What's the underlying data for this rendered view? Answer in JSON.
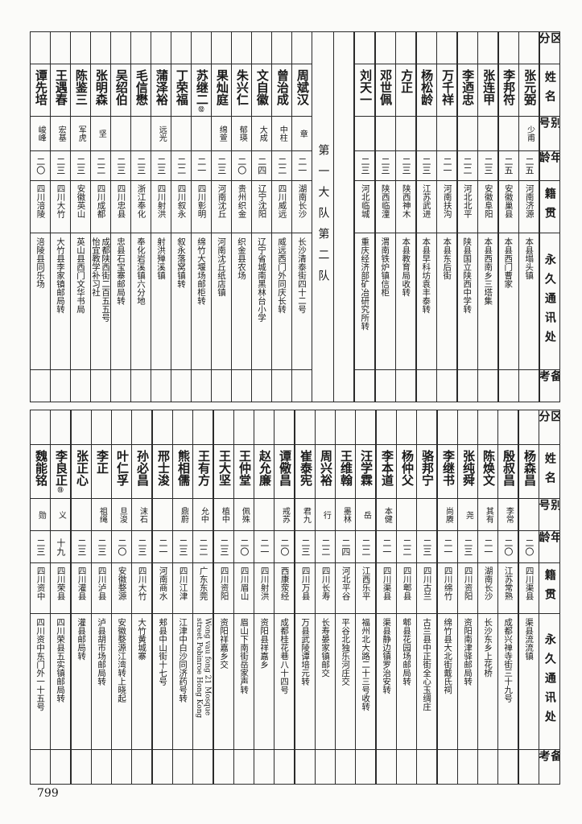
{
  "row_labels": [
    "区分",
    "姓名",
    "别号",
    "年龄",
    "籍贯",
    "永久通讯处",
    "备考"
  ],
  "upper": {
    "group_label": "第一大队第二队",
    "right_people": [
      {
        "name": "张元弼",
        "alias": "少甫",
        "age": "二五",
        "origin": "河南济源",
        "address": "本县塌头镇"
      },
      {
        "name": "李邦符",
        "alias": "",
        "age": "二五",
        "origin": "安徽巢县",
        "address": "本县西门曹家"
      },
      {
        "name": "张连甲",
        "alias": "",
        "age": "二三",
        "origin": "安徽阜阳",
        "address": "本县西南乡三塔集"
      },
      {
        "name": "李迺忠",
        "alias": "",
        "age": "二二",
        "origin": "河北北平",
        "address": "陕县国立陕西中学转"
      },
      {
        "name": "万千祥",
        "alias": "",
        "age": "二一",
        "origin": "河南扶沟",
        "address": "本县东后街"
      },
      {
        "name": "杨松龄",
        "alias": "",
        "age": "二三",
        "origin": "江苏武进",
        "address": "本县早科坊袁丰泰转"
      },
      {
        "name": "方正",
        "alias": "",
        "age": "二三",
        "origin": "陕西神木",
        "address": "本县教育局收转"
      },
      {
        "name": "邓世佩",
        "alias": "",
        "age": "二三",
        "origin": "陕西临潼",
        "address": "渭南铁炉镇信柜"
      },
      {
        "name": "刘天一",
        "alias": "",
        "age": "二三",
        "origin": "河北临城",
        "address": "重庆经济部矿冶研究所转"
      }
    ],
    "left_people": [
      {
        "name": "周斌汉",
        "alias": "章",
        "age": "二一",
        "origin": "湖南长沙",
        "address": "长沙清泰街四十二号"
      },
      {
        "name": "曾治成",
        "alias": "中柱",
        "age": "二二",
        "origin": "四川威远",
        "address": "威远西门外同庆长转"
      },
      {
        "name": "文自徽",
        "alias": "大成",
        "age": "二四",
        "origin": "辽宁沈阳",
        "address": "辽宁省城南黑林台小学"
      },
      {
        "name": "朱兴仁",
        "alias": "郁瑛",
        "age": "二〇",
        "origin": "贵州织金",
        "address": "织金县农场"
      },
      {
        "name": "果灿庭",
        "alias": "绵萱",
        "age": "二三",
        "origin": "河南沈丘",
        "address": "河南沈丘纸店镇"
      },
      {
        "name": "苏继二",
        "mark": "⑫",
        "alias": "",
        "age": "二一",
        "origin": "四川彰明",
        "address": "绵竹大堰场邮柜转"
      },
      {
        "name": "丁荣福",
        "alias": "",
        "age": "二二",
        "origin": "四川叙永",
        "address": "叙永落窝镇转"
      },
      {
        "name": "蒲泽裕",
        "alias": "远光",
        "age": "二三",
        "origin": "四川射洪",
        "address": "射洪殚溪镇"
      },
      {
        "name": "毛信懋",
        "alias": "",
        "age": "二三",
        "origin": "浙江奉化",
        "address": "奉化岩溪镇六分地"
      },
      {
        "name": "吴绍伯",
        "alias": "",
        "age": "二三",
        "origin": "四川忠县",
        "address": "忠县石宝寨邮局转"
      },
      {
        "name": "张明森",
        "alias": "坚",
        "age": "二二",
        "origin": "四川成都",
        "address": "成都陕西街二百五五号\n怡宜教学补习社"
      },
      {
        "name": "陈鉴三",
        "alias": "军虎",
        "age": "二三",
        "origin": "安徽英山",
        "address": "英山县西门文华书局"
      },
      {
        "name": "王遇春",
        "alias": "宏基",
        "age": "二三",
        "origin": "四川大竹",
        "address": "大竹县李家镇邮局转"
      },
      {
        "name": "谭先培",
        "alias": "峻峰",
        "age": "二〇",
        "origin": "四川涪陵",
        "address": "涪陵县同乐场"
      }
    ]
  },
  "lower": {
    "people": [
      {
        "name": "杨森昌",
        "alias": "",
        "age": "二〇",
        "origin": "四川渠县",
        "address": "渠县流流镇"
      },
      {
        "name": "殷叔昌",
        "alias": "李常",
        "age": "二〇",
        "origin": "江苏常熟",
        "address": "成都兴禅寺街三十九号"
      },
      {
        "name": "陈焕文",
        "alias": "其有",
        "age": "二一",
        "origin": "湖南长沙",
        "address": "长沙东乡上花桥"
      },
      {
        "name": "张纯舜",
        "alias": "尧",
        "age": "二三",
        "origin": "四川资阳",
        "address": "资阳南津驿邮局转"
      },
      {
        "name": "李继书",
        "alias": "尚赓",
        "age": "二一",
        "origin": "四川绵竹",
        "address": "绵竹县大北街戴氏祠"
      },
      {
        "name": "骆邦宁",
        "alias": "",
        "age": "二三",
        "origin": "四川古兰",
        "address": "古兰县中正街全心玉绸庄"
      },
      {
        "name": "杨仲父",
        "alias": "",
        "age": "二二",
        "origin": "四川郫县",
        "address": "郫县花园场邮局转"
      },
      {
        "name": "李本道",
        "alias": "本健",
        "age": "二一",
        "origin": "四川渠县",
        "address": "渠县静边镇罗治安转"
      },
      {
        "name": "汪学霖",
        "alias": "岳",
        "age": "二二",
        "origin": "江西乐平",
        "address": "福州北大路二十三号收转"
      },
      {
        "name": "王维翰",
        "alias": "墨林",
        "age": "二四",
        "origin": "河北平谷",
        "address": "平谷北独乐河庄交"
      },
      {
        "name": "周兴裕",
        "alias": "行",
        "age": "二二",
        "origin": "四川长寿",
        "address": "长寿晏家镇邮交"
      },
      {
        "name": "崔泰宪",
        "alias": "君九",
        "age": "二三",
        "origin": "四川万县",
        "address": "万县武陵谭培元转"
      },
      {
        "name": "谭儆昌",
        "alias": "戒苏",
        "age": "二〇",
        "origin": "西康荥经",
        "address": "成都桂花巷八十四号"
      },
      {
        "name": "赵允廉",
        "alias": "",
        "age": "二一",
        "origin": "四川射洪",
        "address": "资阳县祥嘉乡"
      },
      {
        "name": "王仲堂",
        "alias": "佩殊",
        "age": "二〇",
        "origin": "四川眉山",
        "address": "眉山下南街岳家声转"
      },
      {
        "name": "王大坚",
        "alias": "植中",
        "age": "二三",
        "origin": "四川资阳",
        "address": "资阳祥嘉乡交"
      },
      {
        "name": "王有方",
        "alias": "允中",
        "age": "二二",
        "origin": "广东东莞",
        "address": "Wong vau fong 21 Mosque\nstreet Pobinroe Hong Kong",
        "latin": true
      },
      {
        "name": "熊相儒",
        "alias": "鼎蔚",
        "age": "二三",
        "origin": "四川江津",
        "address": "江津中白沙同济药号转"
      },
      {
        "name": "邢士浚",
        "alias": "",
        "age": "二一",
        "origin": "河南商水",
        "address": "郏县中山街十七号"
      },
      {
        "name": "孙必昌",
        "alias": "沫石",
        "age": "二三",
        "origin": "四川大竹",
        "address": "大竹黄城寨"
      },
      {
        "name": "叶仁孚",
        "alias": "旦浚",
        "age": "二〇",
        "origin": "安徽婺源",
        "address": "安徽婺源江湾转上晓起"
      },
      {
        "name": "李正",
        "alias": "祖绳",
        "age": "二三",
        "origin": "四川泸县",
        "address": "泸县胡市场邮局转"
      },
      {
        "name": "张正心",
        "alias": "",
        "age": "二三",
        "origin": "四川灌县",
        "address": "灌县邮局转"
      },
      {
        "name": "李良正",
        "mark": "⑬",
        "alias": "义",
        "age": "十九",
        "origin": "四川荣县",
        "address": "四川荣县五实镇邮局转"
      },
      {
        "name": "魏能铭",
        "alias": "勋",
        "age": "二三",
        "origin": "四川资中",
        "address": "四川资中东门外一十五号"
      }
    ]
  },
  "page_number": "799"
}
